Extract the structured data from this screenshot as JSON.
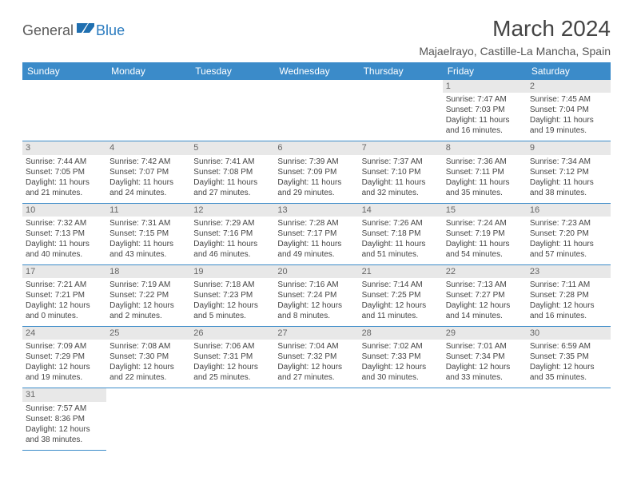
{
  "logo": {
    "general": "General",
    "blue": "Blue"
  },
  "title": "March 2024",
  "location": "Majaelrayo, Castille-La Mancha, Spain",
  "colors": {
    "header_bg": "#3b8bc9",
    "header_fg": "#ffffff",
    "daynum_bg": "#e8e8e8",
    "border": "#3b8bc9",
    "logo_gray": "#5a5a5a",
    "logo_blue": "#2a7bbf"
  },
  "weekdays": [
    "Sunday",
    "Monday",
    "Tuesday",
    "Wednesday",
    "Thursday",
    "Friday",
    "Saturday"
  ],
  "weeks": [
    [
      null,
      null,
      null,
      null,
      null,
      {
        "n": "1",
        "sr": "Sunrise: 7:47 AM",
        "ss": "Sunset: 7:03 PM",
        "dl": "Daylight: 11 hours and 16 minutes."
      },
      {
        "n": "2",
        "sr": "Sunrise: 7:45 AM",
        "ss": "Sunset: 7:04 PM",
        "dl": "Daylight: 11 hours and 19 minutes."
      }
    ],
    [
      {
        "n": "3",
        "sr": "Sunrise: 7:44 AM",
        "ss": "Sunset: 7:05 PM",
        "dl": "Daylight: 11 hours and 21 minutes."
      },
      {
        "n": "4",
        "sr": "Sunrise: 7:42 AM",
        "ss": "Sunset: 7:07 PM",
        "dl": "Daylight: 11 hours and 24 minutes."
      },
      {
        "n": "5",
        "sr": "Sunrise: 7:41 AM",
        "ss": "Sunset: 7:08 PM",
        "dl": "Daylight: 11 hours and 27 minutes."
      },
      {
        "n": "6",
        "sr": "Sunrise: 7:39 AM",
        "ss": "Sunset: 7:09 PM",
        "dl": "Daylight: 11 hours and 29 minutes."
      },
      {
        "n": "7",
        "sr": "Sunrise: 7:37 AM",
        "ss": "Sunset: 7:10 PM",
        "dl": "Daylight: 11 hours and 32 minutes."
      },
      {
        "n": "8",
        "sr": "Sunrise: 7:36 AM",
        "ss": "Sunset: 7:11 PM",
        "dl": "Daylight: 11 hours and 35 minutes."
      },
      {
        "n": "9",
        "sr": "Sunrise: 7:34 AM",
        "ss": "Sunset: 7:12 PM",
        "dl": "Daylight: 11 hours and 38 minutes."
      }
    ],
    [
      {
        "n": "10",
        "sr": "Sunrise: 7:32 AM",
        "ss": "Sunset: 7:13 PM",
        "dl": "Daylight: 11 hours and 40 minutes."
      },
      {
        "n": "11",
        "sr": "Sunrise: 7:31 AM",
        "ss": "Sunset: 7:15 PM",
        "dl": "Daylight: 11 hours and 43 minutes."
      },
      {
        "n": "12",
        "sr": "Sunrise: 7:29 AM",
        "ss": "Sunset: 7:16 PM",
        "dl": "Daylight: 11 hours and 46 minutes."
      },
      {
        "n": "13",
        "sr": "Sunrise: 7:28 AM",
        "ss": "Sunset: 7:17 PM",
        "dl": "Daylight: 11 hours and 49 minutes."
      },
      {
        "n": "14",
        "sr": "Sunrise: 7:26 AM",
        "ss": "Sunset: 7:18 PM",
        "dl": "Daylight: 11 hours and 51 minutes."
      },
      {
        "n": "15",
        "sr": "Sunrise: 7:24 AM",
        "ss": "Sunset: 7:19 PM",
        "dl": "Daylight: 11 hours and 54 minutes."
      },
      {
        "n": "16",
        "sr": "Sunrise: 7:23 AM",
        "ss": "Sunset: 7:20 PM",
        "dl": "Daylight: 11 hours and 57 minutes."
      }
    ],
    [
      {
        "n": "17",
        "sr": "Sunrise: 7:21 AM",
        "ss": "Sunset: 7:21 PM",
        "dl": "Daylight: 12 hours and 0 minutes."
      },
      {
        "n": "18",
        "sr": "Sunrise: 7:19 AM",
        "ss": "Sunset: 7:22 PM",
        "dl": "Daylight: 12 hours and 2 minutes."
      },
      {
        "n": "19",
        "sr": "Sunrise: 7:18 AM",
        "ss": "Sunset: 7:23 PM",
        "dl": "Daylight: 12 hours and 5 minutes."
      },
      {
        "n": "20",
        "sr": "Sunrise: 7:16 AM",
        "ss": "Sunset: 7:24 PM",
        "dl": "Daylight: 12 hours and 8 minutes."
      },
      {
        "n": "21",
        "sr": "Sunrise: 7:14 AM",
        "ss": "Sunset: 7:25 PM",
        "dl": "Daylight: 12 hours and 11 minutes."
      },
      {
        "n": "22",
        "sr": "Sunrise: 7:13 AM",
        "ss": "Sunset: 7:27 PM",
        "dl": "Daylight: 12 hours and 14 minutes."
      },
      {
        "n": "23",
        "sr": "Sunrise: 7:11 AM",
        "ss": "Sunset: 7:28 PM",
        "dl": "Daylight: 12 hours and 16 minutes."
      }
    ],
    [
      {
        "n": "24",
        "sr": "Sunrise: 7:09 AM",
        "ss": "Sunset: 7:29 PM",
        "dl": "Daylight: 12 hours and 19 minutes."
      },
      {
        "n": "25",
        "sr": "Sunrise: 7:08 AM",
        "ss": "Sunset: 7:30 PM",
        "dl": "Daylight: 12 hours and 22 minutes."
      },
      {
        "n": "26",
        "sr": "Sunrise: 7:06 AM",
        "ss": "Sunset: 7:31 PM",
        "dl": "Daylight: 12 hours and 25 minutes."
      },
      {
        "n": "27",
        "sr": "Sunrise: 7:04 AM",
        "ss": "Sunset: 7:32 PM",
        "dl": "Daylight: 12 hours and 27 minutes."
      },
      {
        "n": "28",
        "sr": "Sunrise: 7:02 AM",
        "ss": "Sunset: 7:33 PM",
        "dl": "Daylight: 12 hours and 30 minutes."
      },
      {
        "n": "29",
        "sr": "Sunrise: 7:01 AM",
        "ss": "Sunset: 7:34 PM",
        "dl": "Daylight: 12 hours and 33 minutes."
      },
      {
        "n": "30",
        "sr": "Sunrise: 6:59 AM",
        "ss": "Sunset: 7:35 PM",
        "dl": "Daylight: 12 hours and 35 minutes."
      }
    ],
    [
      {
        "n": "31",
        "sr": "Sunrise: 7:57 AM",
        "ss": "Sunset: 8:36 PM",
        "dl": "Daylight: 12 hours and 38 minutes."
      },
      null,
      null,
      null,
      null,
      null,
      null
    ]
  ]
}
